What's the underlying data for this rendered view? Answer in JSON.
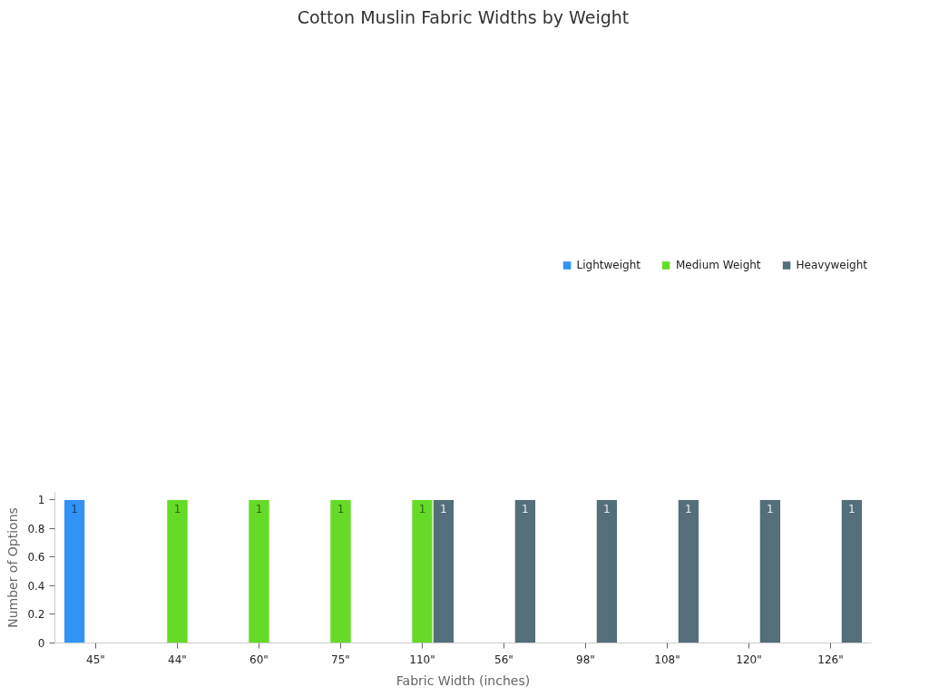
{
  "chart_data": {
    "type": "bar",
    "title": "Cotton Muslin Fabric Widths by Weight",
    "xlabel": "Fabric Width (inches)",
    "ylabel": "Number of Options",
    "categories": [
      "45\"",
      "44\"",
      "60\"",
      "75\"",
      "110\"",
      "56\"",
      "98\"",
      "108\"",
      "120\"",
      "126\""
    ],
    "series": [
      {
        "name": "Lightweight",
        "color": "#3093f5",
        "values": [
          1,
          null,
          null,
          null,
          null,
          null,
          null,
          null,
          null,
          null
        ]
      },
      {
        "name": "Medium Weight",
        "color": "#66db27",
        "values": [
          null,
          1,
          1,
          1,
          1,
          null,
          null,
          null,
          null,
          null
        ]
      },
      {
        "name": "Heavyweight",
        "color": "#546e7a",
        "values": [
          null,
          null,
          null,
          null,
          1,
          1,
          1,
          1,
          1,
          1
        ]
      }
    ],
    "ylim": [
      0,
      1.05
    ],
    "yticks": [
      0,
      0.2,
      0.4,
      0.6,
      0.8,
      1
    ],
    "data_labels": true,
    "grid": false,
    "legend": "top right"
  }
}
